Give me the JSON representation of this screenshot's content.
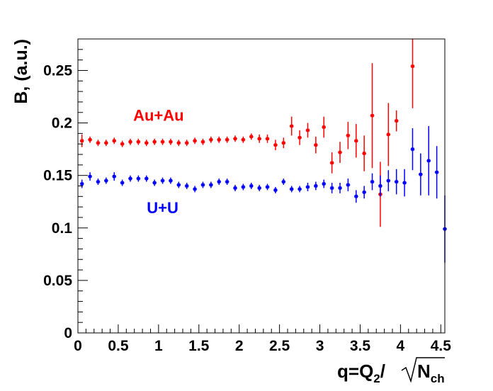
{
  "chart_data": {
    "type": "scatter",
    "title": "",
    "xlabel_parts": {
      "main": "q=Q",
      "sub1": "2",
      "slash": "/",
      "root_main": "N",
      "root_sub": "ch"
    },
    "ylabel": "B, (a.u.)",
    "xlim": [
      0,
      4.55
    ],
    "ylim": [
      0,
      0.28
    ],
    "grid": false,
    "legend": "none",
    "x_ticks": [
      0,
      0.5,
      1,
      1.5,
      2,
      2.5,
      3,
      3.5,
      4,
      4.5
    ],
    "x_tick_labels": [
      "0",
      "0.5",
      "1",
      "1.5",
      "2",
      "2.5",
      "3",
      "3.5",
      "4",
      "4.5"
    ],
    "y_ticks": [
      0,
      0.05,
      0.1,
      0.15,
      0.2,
      0.25
    ],
    "y_tick_labels": [
      "0",
      "0.05",
      "0.1",
      "0.15",
      "0.2",
      "0.25"
    ],
    "x_bin_halfwidth": 0.025,
    "annotations": [
      {
        "text": "Au+Au",
        "color": "#ff0000",
        "x": 1.0,
        "y": 0.202
      },
      {
        "text": "U+U",
        "color": "#0000ff",
        "x": 1.05,
        "y": 0.114
      }
    ],
    "series": [
      {
        "name": "Au+Au",
        "color": "#ff0000",
        "x": [
          0.05,
          0.15,
          0.25,
          0.35,
          0.45,
          0.55,
          0.65,
          0.75,
          0.85,
          0.95,
          1.05,
          1.15,
          1.25,
          1.35,
          1.45,
          1.55,
          1.65,
          1.75,
          1.85,
          1.95,
          2.05,
          2.15,
          2.25,
          2.35,
          2.45,
          2.55,
          2.65,
          2.75,
          2.85,
          2.95,
          3.05,
          3.15,
          3.25,
          3.35,
          3.45,
          3.55,
          3.65,
          3.75,
          3.85,
          3.95,
          4.15
        ],
        "y": [
          0.183,
          0.184,
          0.181,
          0.181,
          0.183,
          0.18,
          0.182,
          0.182,
          0.181,
          0.182,
          0.182,
          0.182,
          0.181,
          0.181,
          0.183,
          0.182,
          0.184,
          0.184,
          0.184,
          0.185,
          0.184,
          0.187,
          0.185,
          0.185,
          0.179,
          0.181,
          0.197,
          0.186,
          0.193,
          0.179,
          0.196,
          0.162,
          0.172,
          0.188,
          0.183,
          0.171,
          0.207,
          0.132,
          0.189,
          0.202,
          0.254
        ],
        "yerr": [
          0.006,
          0.003,
          0.003,
          0.003,
          0.003,
          0.003,
          0.003,
          0.003,
          0.003,
          0.003,
          0.003,
          0.003,
          0.003,
          0.003,
          0.003,
          0.003,
          0.003,
          0.003,
          0.003,
          0.003,
          0.003,
          0.003,
          0.004,
          0.004,
          0.005,
          0.005,
          0.009,
          0.007,
          0.007,
          0.008,
          0.01,
          0.01,
          0.01,
          0.013,
          0.016,
          0.017,
          0.05,
          0.031,
          0.03,
          0.01,
          0.04
        ]
      },
      {
        "name": "U+U",
        "color": "#0000ff",
        "x": [
          0.05,
          0.15,
          0.25,
          0.35,
          0.45,
          0.55,
          0.65,
          0.75,
          0.85,
          0.95,
          1.05,
          1.15,
          1.25,
          1.35,
          1.45,
          1.55,
          1.65,
          1.75,
          1.85,
          1.95,
          2.05,
          2.15,
          2.25,
          2.35,
          2.45,
          2.55,
          2.65,
          2.75,
          2.85,
          2.95,
          3.05,
          3.15,
          3.25,
          3.35,
          3.45,
          3.55,
          3.65,
          3.75,
          3.85,
          3.95,
          4.05,
          4.15,
          4.25,
          4.35,
          4.45,
          4.55
        ],
        "y": [
          0.142,
          0.149,
          0.144,
          0.145,
          0.149,
          0.143,
          0.147,
          0.147,
          0.147,
          0.143,
          0.145,
          0.145,
          0.141,
          0.14,
          0.137,
          0.141,
          0.141,
          0.144,
          0.144,
          0.138,
          0.139,
          0.14,
          0.138,
          0.139,
          0.136,
          0.144,
          0.137,
          0.137,
          0.139,
          0.14,
          0.142,
          0.138,
          0.138,
          0.141,
          0.13,
          0.134,
          0.144,
          0.14,
          0.145,
          0.144,
          0.143,
          0.175,
          0.151,
          0.164,
          0.153,
          0.099
        ],
        "yerr": [
          0.004,
          0.004,
          0.003,
          0.003,
          0.004,
          0.003,
          0.003,
          0.003,
          0.003,
          0.003,
          0.003,
          0.003,
          0.003,
          0.003,
          0.003,
          0.003,
          0.003,
          0.003,
          0.003,
          0.003,
          0.003,
          0.003,
          0.003,
          0.003,
          0.003,
          0.003,
          0.003,
          0.003,
          0.004,
          0.004,
          0.004,
          0.005,
          0.005,
          0.006,
          0.006,
          0.006,
          0.008,
          0.01,
          0.01,
          0.012,
          0.013,
          0.02,
          0.02,
          0.033,
          0.025,
          0.032
        ]
      }
    ]
  }
}
